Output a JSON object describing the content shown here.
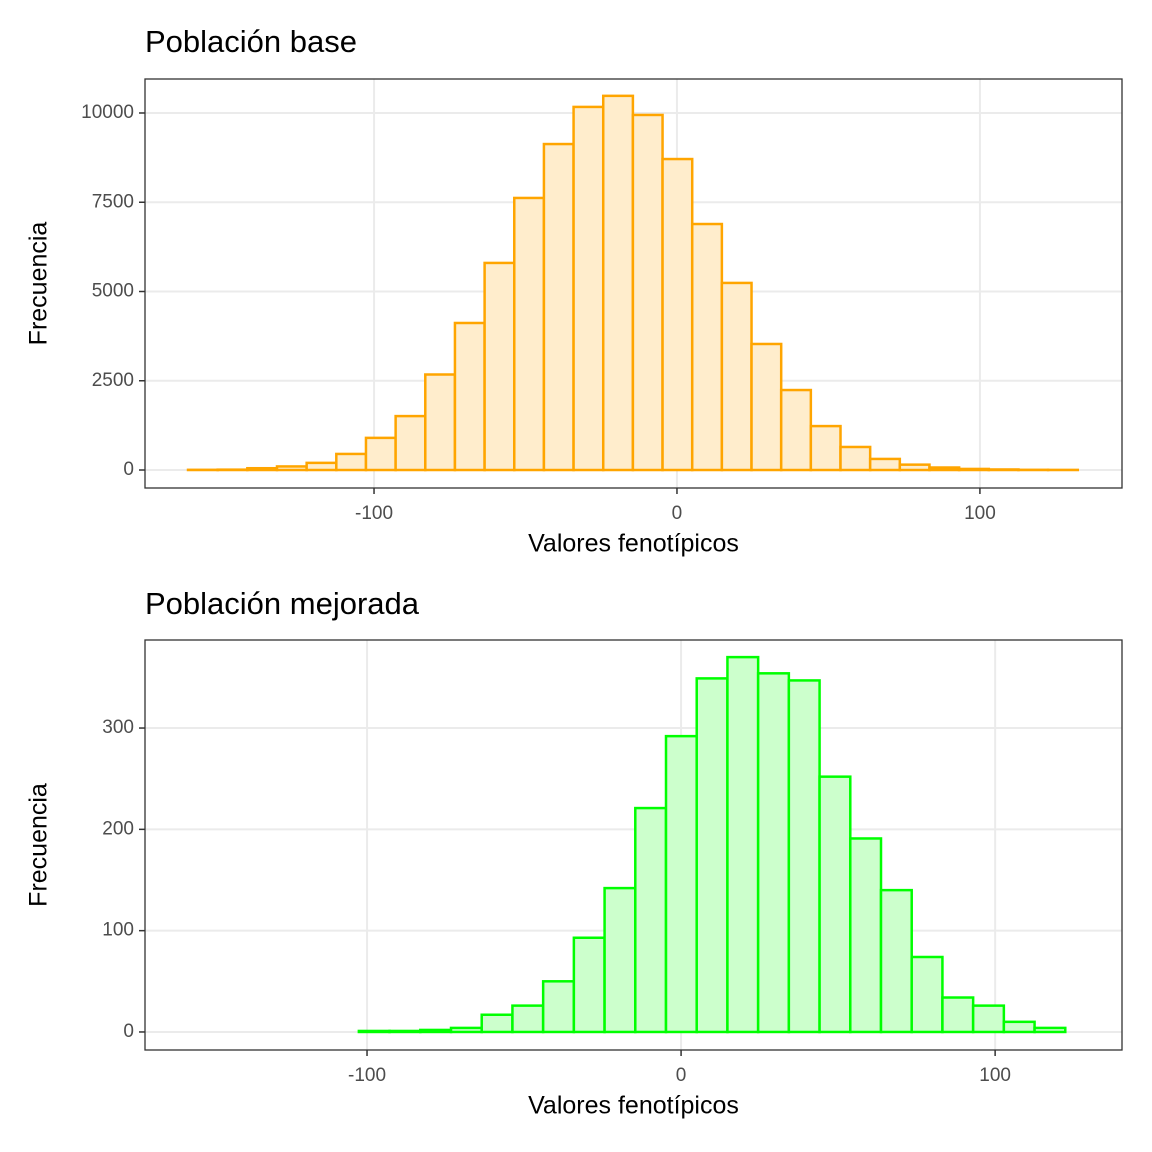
{
  "chart_data": [
    {
      "type": "histogram",
      "title": "Población base",
      "xlabel": "Valores fenotípicos",
      "ylabel": "Frecuencia",
      "bins": [
        -161.4,
        -151.61,
        -141.82,
        -132.03,
        -122.24,
        -112.45,
        -102.66,
        -92.87,
        -83.08,
        -73.29,
        -63.5,
        -53.71,
        -43.92,
        -34.13,
        -24.34,
        -14.55,
        -4.76,
        5.03,
        14.82,
        24.61,
        34.4,
        44.19,
        53.98,
        63.77,
        73.56,
        83.35,
        93.14,
        102.93,
        112.72,
        122.51,
        132.3
      ],
      "counts": [
        5,
        10,
        50,
        100,
        200,
        450,
        900,
        1510,
        2675,
        4118,
        5800,
        7620,
        9130,
        10170,
        10480,
        9945,
        8710,
        6890,
        5240,
        3530,
        2240,
        1230,
        645,
        310,
        150,
        70,
        30,
        15,
        5,
        3
      ],
      "color": "#FFA500",
      "fill_color": "#FFEDCC",
      "xlim": [
        -175.6,
        146.9
      ],
      "xticks": [
        -100,
        0,
        100
      ],
      "ylim": [
        -504,
        10952
      ],
      "yticks": [
        0,
        2500,
        5000,
        7500,
        10000
      ],
      "grid": true
    },
    {
      "type": "histogram",
      "title": "Población mejorada",
      "xlabel": "Valores fenotípicos",
      "ylabel": "Frecuencia",
      "bins": [
        -151.5,
        -141.72,
        -131.94,
        -122.16,
        -112.38,
        -102.6,
        -92.82,
        -83.04,
        -73.26,
        -63.48,
        -53.7,
        -43.92,
        -34.14,
        -24.36,
        -14.58,
        -4.8,
        4.98,
        14.76,
        24.54,
        34.32,
        44.1,
        53.88,
        63.66,
        73.44,
        83.22,
        93,
        102.78,
        112.56,
        122.34
      ],
      "counts": [
        0,
        0,
        0,
        0,
        0,
        1,
        1,
        2,
        4,
        17,
        26,
        50,
        93,
        142,
        221,
        292,
        349,
        370,
        354,
        347,
        252,
        191,
        140,
        74,
        34,
        26,
        10,
        4
      ],
      "color": "#00FF00",
      "fill_color": "#CCFFCC",
      "xlim": [
        -170.7,
        140.4
      ],
      "xticks": [
        -100,
        0,
        100
      ],
      "ylim": [
        -17.8,
        386.9
      ],
      "yticks": [
        0,
        100,
        200,
        300
      ],
      "grid": true
    }
  ]
}
